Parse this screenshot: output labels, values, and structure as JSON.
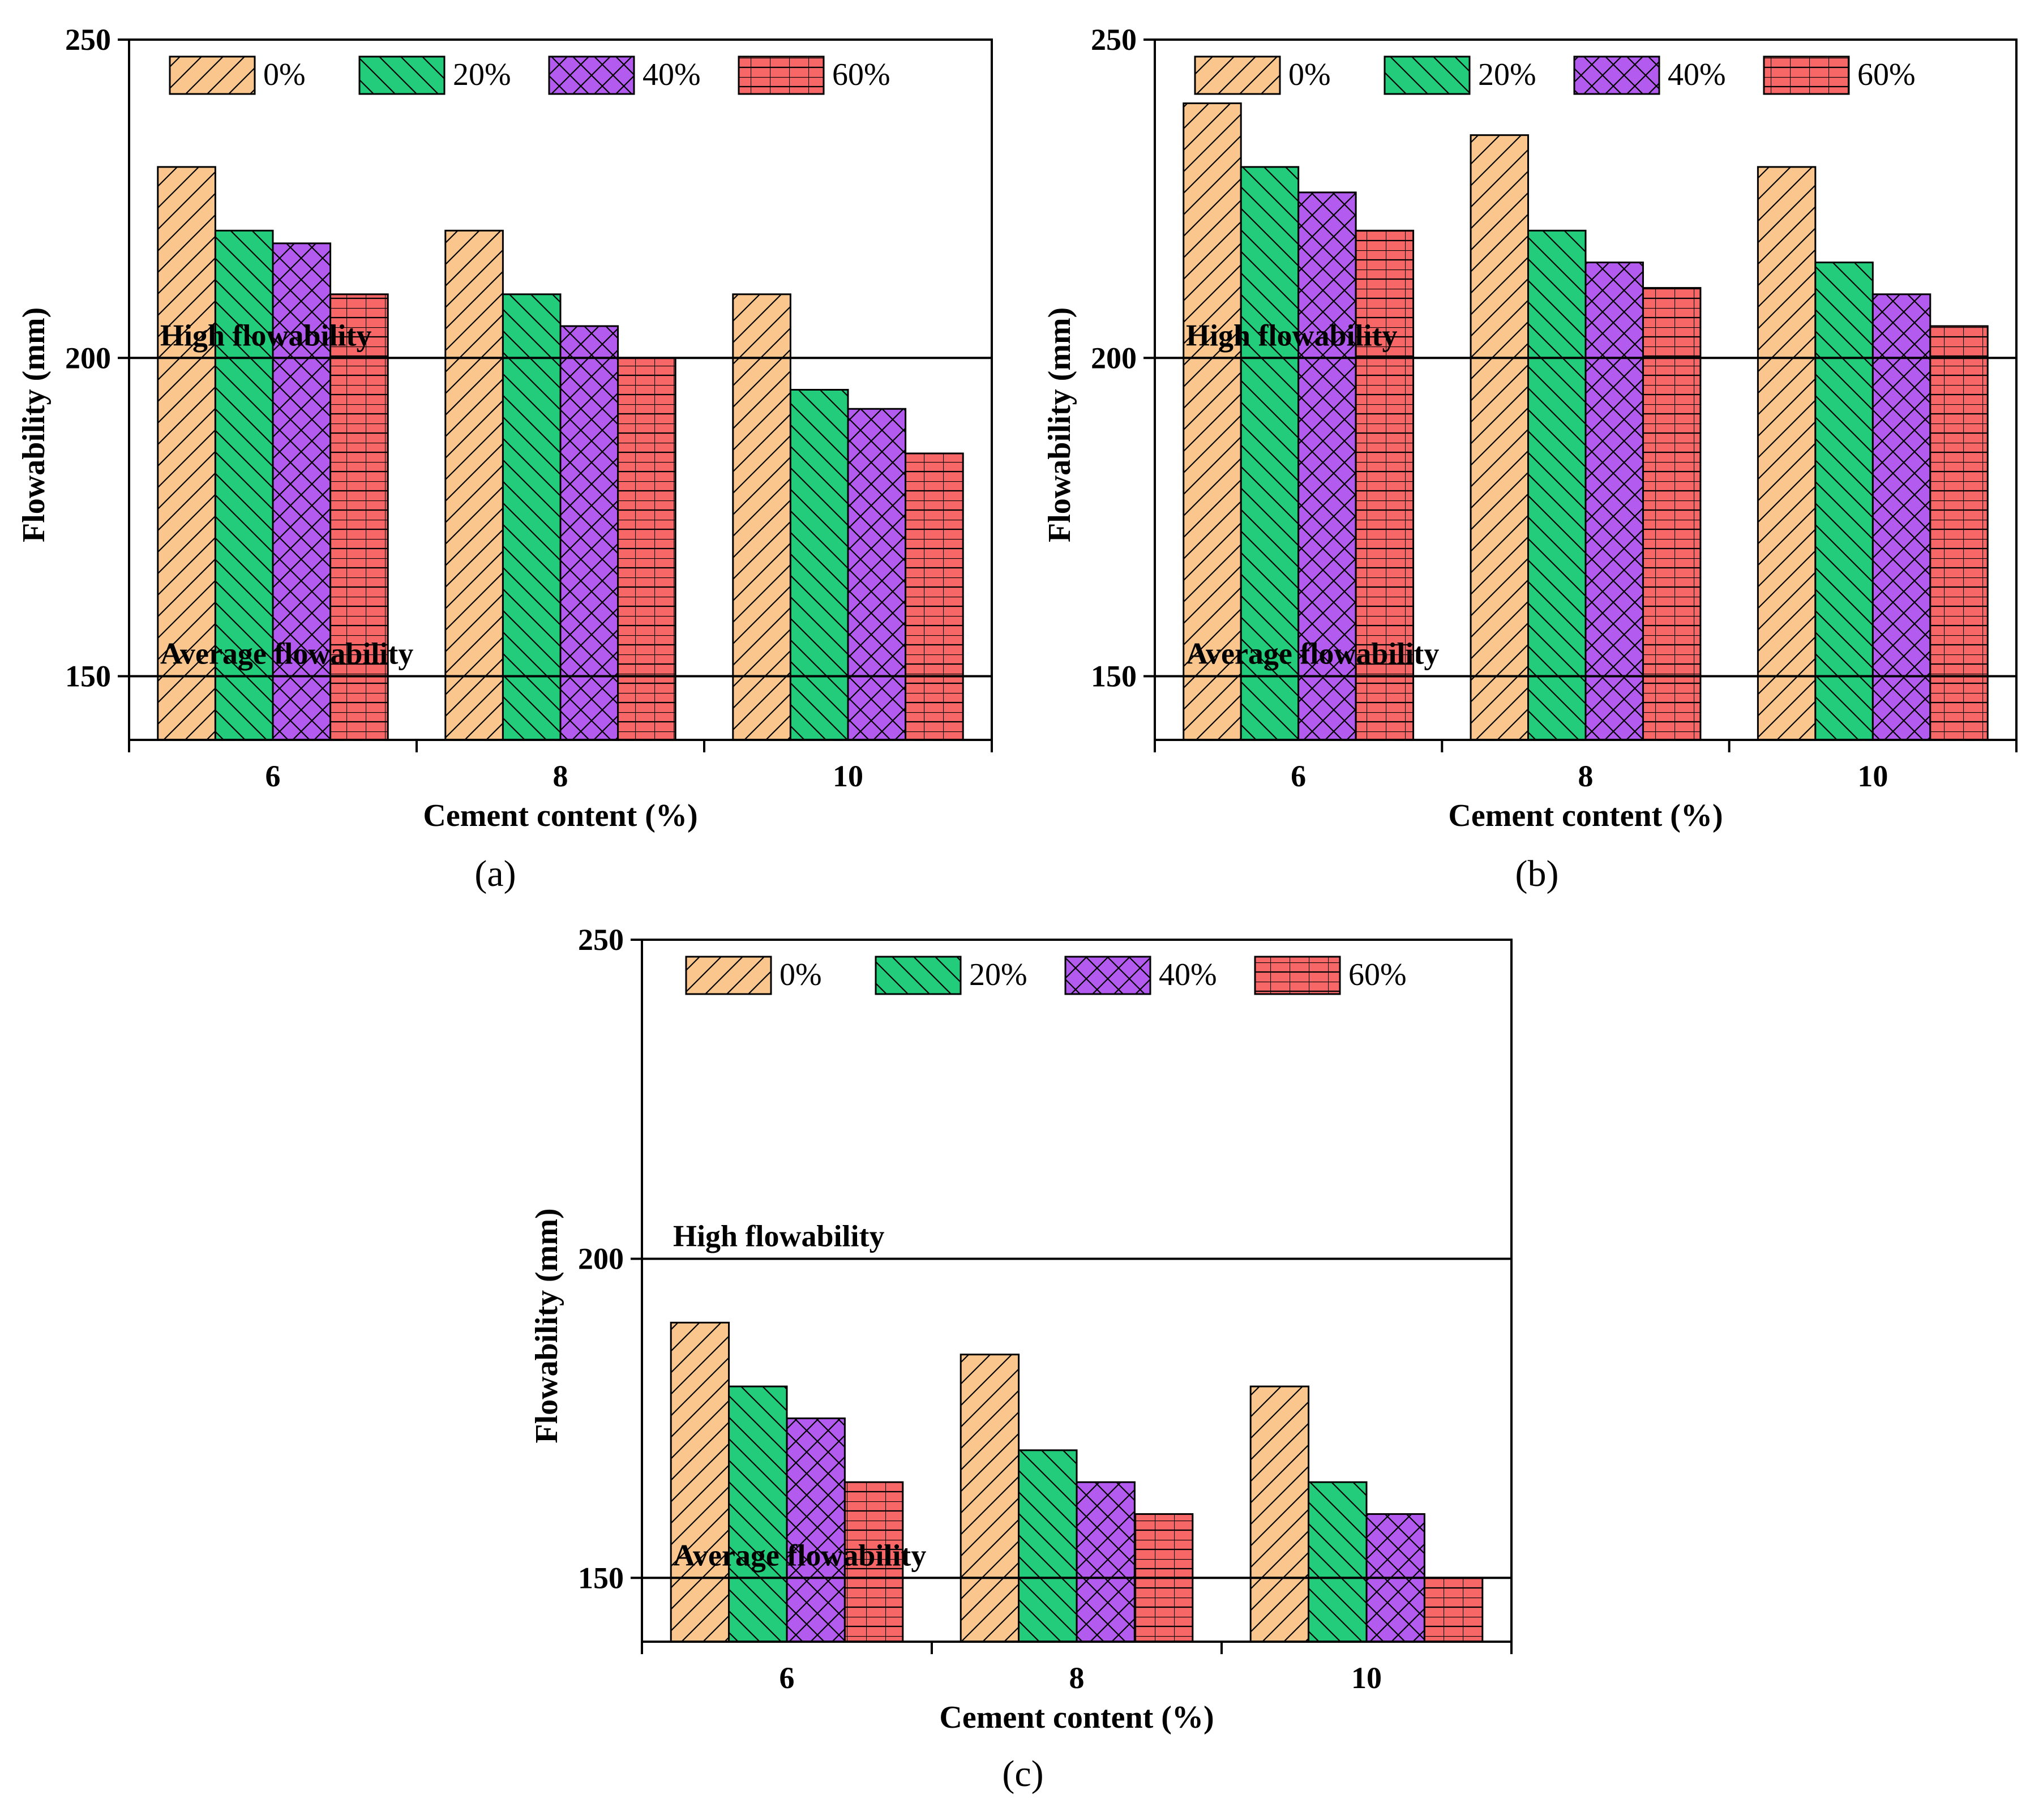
{
  "colors": {
    "0%": "#fac68e",
    "20%": "#22cc7a",
    "40%": "#b25bee",
    "60%": "#f86767"
  },
  "patterns": {
    "0%": "diagonal-up",
    "20%": "diagonal-down",
    "40%": "crosshatch",
    "60%": "grid"
  },
  "chart_data": [
    {
      "type": "bar",
      "panel_label": "(a)",
      "categories": [
        "6",
        "8",
        "10"
      ],
      "series": [
        {
          "name": "0%",
          "values": [
            230,
            220,
            210
          ]
        },
        {
          "name": "20%",
          "values": [
            220,
            210,
            195
          ]
        },
        {
          "name": "40%",
          "values": [
            218,
            205,
            192
          ]
        },
        {
          "name": "60%",
          "values": [
            210,
            200,
            185
          ]
        }
      ],
      "xlabel": "Cement content (%)",
      "ylabel": "Flowability (mm)",
      "ylim": [
        140,
        250
      ],
      "yticks": [
        "150",
        "200",
        "250"
      ],
      "reference_lines": [
        {
          "y": 200,
          "label": "High flowability"
        },
        {
          "y": 150,
          "label": "Average flowability"
        }
      ],
      "legend_position": "top"
    },
    {
      "type": "bar",
      "panel_label": "(b)",
      "categories": [
        "6",
        "8",
        "10"
      ],
      "series": [
        {
          "name": "0%",
          "values": [
            240,
            235,
            230
          ]
        },
        {
          "name": "20%",
          "values": [
            230,
            220,
            215
          ]
        },
        {
          "name": "40%",
          "values": [
            226,
            215,
            210
          ]
        },
        {
          "name": "60%",
          "values": [
            220,
            211,
            205
          ]
        }
      ],
      "xlabel": "Cement content (%)",
      "ylabel": "Flowability (mm)",
      "ylim": [
        140,
        250
      ],
      "yticks": [
        "150",
        "200",
        "250"
      ],
      "reference_lines": [
        {
          "y": 200,
          "label": "High flowability"
        },
        {
          "y": 150,
          "label": "Average flowability"
        }
      ],
      "legend_position": "top"
    },
    {
      "type": "bar",
      "panel_label": "(c)",
      "categories": [
        "6",
        "8",
        "10"
      ],
      "series": [
        {
          "name": "0%",
          "values": [
            190,
            185,
            180
          ]
        },
        {
          "name": "20%",
          "values": [
            180,
            170,
            165
          ]
        },
        {
          "name": "40%",
          "values": [
            175,
            165,
            160
          ]
        },
        {
          "name": "60%",
          "values": [
            165,
            160,
            150
          ]
        }
      ],
      "xlabel": "Cement content (%)",
      "ylabel": "Flowability (mm)",
      "ylim": [
        140,
        250
      ],
      "yticks": [
        "150",
        "200",
        "250"
      ],
      "reference_lines": [
        {
          "y": 200,
          "label": "High flowability"
        },
        {
          "y": 150,
          "label": "Average flowability"
        }
      ],
      "legend_position": "top"
    }
  ]
}
